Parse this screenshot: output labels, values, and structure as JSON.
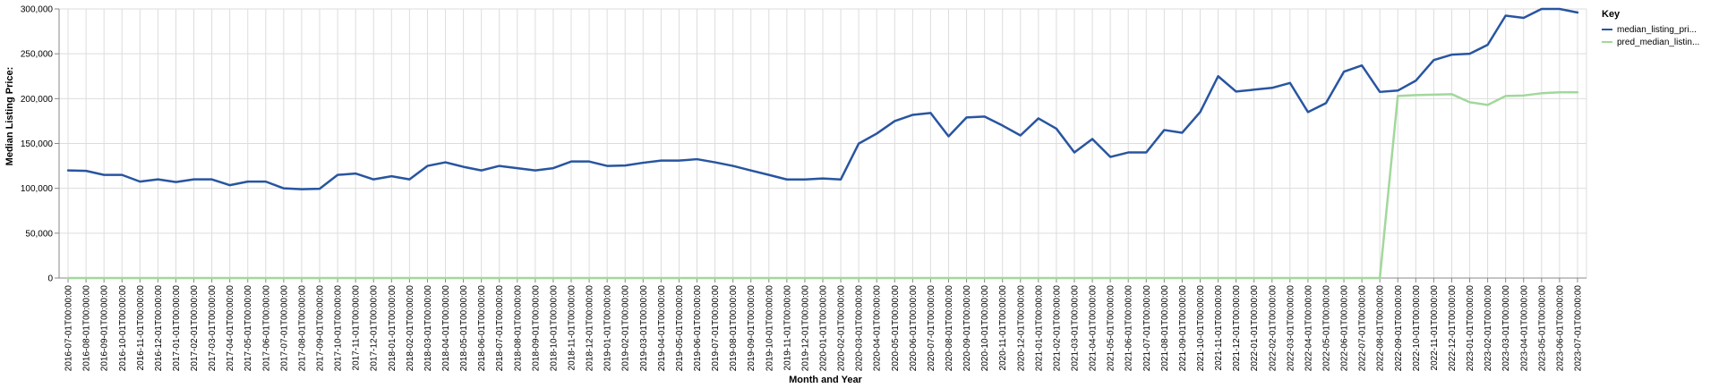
{
  "chart_data": {
    "type": "line",
    "xlabel": "Month and Year",
    "ylabel": "Median Listing Price:",
    "ylim": [
      0,
      300000
    ],
    "y_ticks": [
      "0",
      "50,000",
      "100,000",
      "150,000",
      "200,000",
      "250,000",
      "300,000"
    ],
    "grid": true,
    "legend": {
      "title": "Key",
      "placement": "right"
    },
    "x": [
      "2016-07-01T00:00:00",
      "2016-08-01T00:00:00",
      "2016-09-01T00:00:00",
      "2016-10-01T00:00:00",
      "2016-11-01T00:00:00",
      "2016-12-01T00:00:00",
      "2017-01-01T00:00:00",
      "2017-02-01T00:00:00",
      "2017-03-01T00:00:00",
      "2017-04-01T00:00:00",
      "2017-05-01T00:00:00",
      "2017-06-01T00:00:00",
      "2017-07-01T00:00:00",
      "2017-08-01T00:00:00",
      "2017-09-01T00:00:00",
      "2017-10-01T00:00:00",
      "2017-11-01T00:00:00",
      "2017-12-01T00:00:00",
      "2018-01-01T00:00:00",
      "2018-02-01T00:00:00",
      "2018-03-01T00:00:00",
      "2018-04-01T00:00:00",
      "2018-05-01T00:00:00",
      "2018-06-01T00:00:00",
      "2018-07-01T00:00:00",
      "2018-08-01T00:00:00",
      "2018-09-01T00:00:00",
      "2018-10-01T00:00:00",
      "2018-11-01T00:00:00",
      "2018-12-01T00:00:00",
      "2019-01-01T00:00:00",
      "2019-02-01T00:00:00",
      "2019-03-01T00:00:00",
      "2019-04-01T00:00:00",
      "2019-05-01T00:00:00",
      "2019-06-01T00:00:00",
      "2019-07-01T00:00:00",
      "2019-08-01T00:00:00",
      "2019-09-01T00:00:00",
      "2019-10-01T00:00:00",
      "2019-11-01T00:00:00",
      "2019-12-01T00:00:00",
      "2020-01-01T00:00:00",
      "2020-02-01T00:00:00",
      "2020-03-01T00:00:00",
      "2020-04-01T00:00:00",
      "2020-05-01T00:00:00",
      "2020-06-01T00:00:00",
      "2020-07-01T00:00:00",
      "2020-08-01T00:00:00",
      "2020-09-01T00:00:00",
      "2020-10-01T00:00:00",
      "2020-11-01T00:00:00",
      "2020-12-01T00:00:00",
      "2021-01-01T00:00:00",
      "2021-02-01T00:00:00",
      "2021-03-01T00:00:00",
      "2021-04-01T00:00:00",
      "2021-05-01T00:00:00",
      "2021-06-01T00:00:00",
      "2021-07-01T00:00:00",
      "2021-08-01T00:00:00",
      "2021-09-01T00:00:00",
      "2021-10-01T00:00:00",
      "2021-11-01T00:00:00",
      "2021-12-01T00:00:00",
      "2022-01-01T00:00:00",
      "2022-02-01T00:00:00",
      "2022-03-01T00:00:00",
      "2022-04-01T00:00:00",
      "2022-05-01T00:00:00",
      "2022-06-01T00:00:00",
      "2022-07-01T00:00:00",
      "2022-08-01T00:00:00",
      "2022-09-01T00:00:00",
      "2022-10-01T00:00:00",
      "2022-11-01T00:00:00",
      "2022-12-01T00:00:00",
      "2023-01-01T00:00:00",
      "2023-02-01T00:00:00",
      "2023-03-01T00:00:00",
      "2023-04-01T00:00:00",
      "2023-05-01T00:00:00",
      "2023-06-01T00:00:00",
      "2023-07-01T00:00:00"
    ],
    "series": [
      {
        "name": "median_listing_pri...",
        "color": "#2855a0",
        "values": [
          120000,
          119500,
          115000,
          115000,
          107500,
          110000,
          107000,
          110000,
          110000,
          103500,
          107500,
          107500,
          100000,
          99000,
          99500,
          115000,
          116500,
          110000,
          113500,
          110000,
          125000,
          129000,
          124000,
          120000,
          125000,
          122500,
          120000,
          122500,
          129900,
          129900,
          125000,
          125500,
          128500,
          130900,
          130900,
          132500,
          129000,
          125000,
          119900,
          115000,
          109900,
          109900,
          111000,
          109900,
          149900,
          161000,
          175000,
          181900,
          184000,
          158000,
          179000,
          180000,
          170000,
          159000,
          178000,
          166500,
          140000,
          155000,
          135000,
          140000,
          140000,
          165000,
          162000,
          185000,
          225000,
          207900,
          210000,
          212000,
          217500,
          185000,
          195000,
          230000,
          237000,
          207500,
          209000,
          220000,
          243000,
          249000,
          250000,
          260000,
          292500,
          290000,
          300000,
          300000,
          296000
        ]
      },
      {
        "name": "pred_median_listin...",
        "color": "#a2d89c",
        "values": [
          0,
          0,
          0,
          0,
          0,
          0,
          0,
          0,
          0,
          0,
          0,
          0,
          0,
          0,
          0,
          0,
          0,
          0,
          0,
          0,
          0,
          0,
          0,
          0,
          0,
          0,
          0,
          0,
          0,
          0,
          0,
          0,
          0,
          0,
          0,
          0,
          0,
          0,
          0,
          0,
          0,
          0,
          0,
          0,
          0,
          0,
          0,
          0,
          0,
          0,
          0,
          0,
          0,
          0,
          0,
          0,
          0,
          0,
          0,
          0,
          0,
          0,
          0,
          0,
          0,
          0,
          0,
          0,
          0,
          0,
          0,
          0,
          0,
          0,
          203000,
          204000,
          204500,
          205000,
          196000,
          193000,
          203000,
          203500,
          206000,
          207000,
          207000
        ]
      }
    ]
  }
}
